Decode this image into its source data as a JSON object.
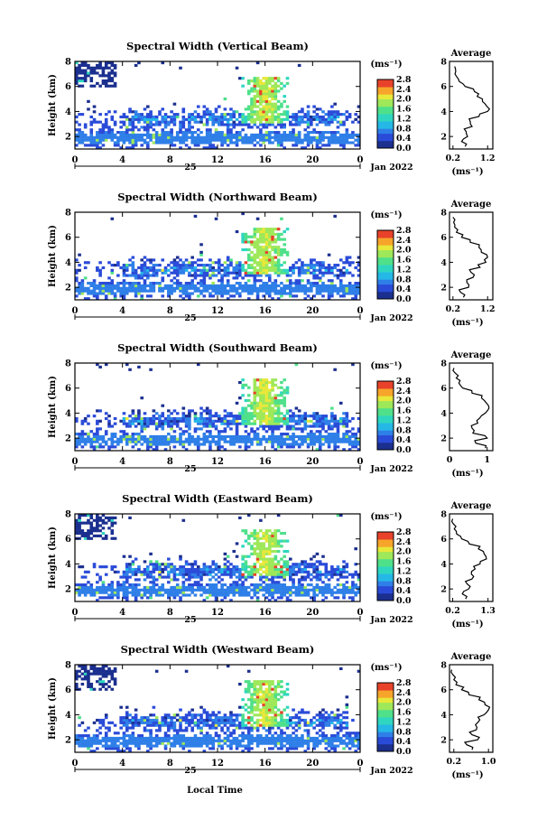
{
  "figure": {
    "date_label": "Jan 2022",
    "day_label": "25",
    "xlabel": "Local Time",
    "colorbar_unit": "(ms⁻¹)",
    "colorbar_ticks": [
      "0.0",
      "0.4",
      "0.8",
      "1.2",
      "1.6",
      "2.0",
      "2.4",
      "2.8"
    ],
    "colormap": [
      "#1b2f8f",
      "#2a4bd8",
      "#2f7fe8",
      "#25b8e6",
      "#2fd6c0",
      "#4fe08a",
      "#9ee85a",
      "#e8e83a",
      "#f6a52a",
      "#e8422a"
    ]
  },
  "chart_data": [
    {
      "type": "heatmap",
      "title": "Spectral Width (Vertical Beam)",
      "ylabel": "Height (km)",
      "x_ticks": [
        "0",
        "4",
        "8",
        "12",
        "16",
        "20",
        "0"
      ],
      "y_ticks": [
        "2",
        "4",
        "6",
        "8"
      ],
      "xlim": [
        0,
        24
      ],
      "ylim": [
        1,
        8
      ],
      "color_range": [
        0.0,
        2.8
      ],
      "profile": {
        "title": "Average",
        "xlabel": "(ms⁻¹)",
        "x_ticks": [
          "0.2",
          "1.2"
        ],
        "x_tick_values": [
          0.2,
          1.2
        ],
        "xlim": [
          0.1,
          1.35
        ],
        "y_ticks": [
          "2",
          "4",
          "6",
          "8"
        ],
        "heights": [
          1.2,
          1.6,
          2.0,
          2.4,
          2.8,
          3.2,
          3.6,
          4.0,
          4.4,
          4.8,
          5.2,
          5.6,
          6.0,
          6.4,
          6.8,
          7.2,
          7.6
        ],
        "values": [
          0.55,
          0.45,
          0.62,
          0.58,
          0.75,
          0.7,
          0.95,
          1.2,
          1.18,
          1.05,
          0.9,
          0.82,
          0.55,
          0.38,
          0.3,
          0.28,
          0.25
        ]
      }
    },
    {
      "type": "heatmap",
      "title": "Spectral Width (Northward Beam)",
      "ylabel": "Height (km)",
      "x_ticks": [
        "0",
        "4",
        "8",
        "12",
        "16",
        "20",
        "0"
      ],
      "y_ticks": [
        "2",
        "4",
        "6",
        "8"
      ],
      "xlim": [
        0,
        24
      ],
      "ylim": [
        1,
        8
      ],
      "color_range": [
        0.0,
        2.8
      ],
      "profile": {
        "title": "Average",
        "xlabel": "(ms⁻¹)",
        "x_ticks": [
          "0.2",
          "1.2"
        ],
        "x_tick_values": [
          0.2,
          1.2
        ],
        "xlim": [
          0.1,
          1.35
        ],
        "y_ticks": [
          "2",
          "4",
          "6",
          "8"
        ],
        "heights": [
          1.2,
          1.6,
          2.0,
          2.4,
          2.8,
          3.2,
          3.6,
          4.0,
          4.4,
          4.8,
          5.2,
          5.6,
          6.0,
          6.4,
          6.8,
          7.2,
          7.6
        ],
        "values": [
          0.5,
          0.42,
          0.65,
          0.6,
          0.78,
          0.72,
          0.98,
          1.15,
          1.2,
          1.02,
          0.95,
          0.7,
          0.45,
          0.3,
          0.25,
          0.22,
          0.2
        ]
      }
    },
    {
      "type": "heatmap",
      "title": "Spectral Width (Southward Beam)",
      "ylabel": "Height (km)",
      "x_ticks": [
        "0",
        "4",
        "8",
        "12",
        "16",
        "20",
        "0"
      ],
      "y_ticks": [
        "2",
        "4",
        "6",
        "8"
      ],
      "xlim": [
        0,
        24
      ],
      "ylim": [
        1,
        8
      ],
      "color_range": [
        0.0,
        2.8
      ],
      "profile": {
        "title": "Average",
        "xlabel": "(ms⁻¹)",
        "x_ticks": [
          "0",
          "1"
        ],
        "x_tick_values": [
          0,
          1
        ],
        "xlim": [
          0,
          1.15
        ],
        "y_ticks": [
          "2",
          "4",
          "6",
          "8"
        ],
        "heights": [
          1.2,
          1.6,
          2.0,
          2.4,
          2.8,
          3.2,
          3.6,
          4.0,
          4.4,
          4.8,
          5.2,
          5.6,
          6.0,
          6.4,
          6.8,
          7.2,
          7.6
        ],
        "values": [
          0.95,
          0.7,
          1.0,
          0.62,
          0.6,
          0.75,
          0.8,
          0.95,
          1.05,
          0.98,
          0.85,
          0.6,
          0.35,
          0.25,
          0.18,
          0.15,
          0.12
        ]
      }
    },
    {
      "type": "heatmap",
      "title": "Spectral Width (Eastward Beam)",
      "ylabel": "Height (km)",
      "x_ticks": [
        "0",
        "4",
        "8",
        "12",
        "16",
        "20",
        "0"
      ],
      "y_ticks": [
        "2",
        "4",
        "6",
        "8"
      ],
      "xlim": [
        0,
        24
      ],
      "ylim": [
        1,
        8
      ],
      "color_range": [
        0.0,
        2.8
      ],
      "profile": {
        "title": "Average",
        "xlabel": "(ms⁻¹)",
        "x_ticks": [
          "0.2",
          "1.3"
        ],
        "x_tick_values": [
          0.2,
          1.3
        ],
        "xlim": [
          0.1,
          1.45
        ],
        "y_ticks": [
          "2",
          "4",
          "6",
          "8"
        ],
        "heights": [
          1.2,
          1.6,
          2.0,
          2.4,
          2.8,
          3.2,
          3.6,
          4.0,
          4.4,
          4.8,
          5.2,
          5.6,
          6.0,
          6.4,
          6.8,
          7.2,
          7.6
        ],
        "values": [
          0.6,
          0.5,
          0.7,
          0.65,
          0.8,
          0.78,
          0.9,
          1.05,
          1.25,
          1.18,
          1.0,
          0.72,
          0.48,
          0.32,
          0.25,
          0.22,
          0.2
        ]
      }
    },
    {
      "type": "heatmap",
      "title": "Spectral Width (Westward Beam)",
      "ylabel": "Height (km)",
      "x_ticks": [
        "0",
        "4",
        "8",
        "12",
        "16",
        "20",
        "0"
      ],
      "y_ticks": [
        "2",
        "4",
        "6",
        "8"
      ],
      "xlim": [
        0,
        24
      ],
      "ylim": [
        1,
        8
      ],
      "color_range": [
        0.0,
        2.8
      ],
      "profile": {
        "title": "Average",
        "xlabel": "(ms⁻¹)",
        "x_ticks": [
          "0.2",
          "1.0"
        ],
        "x_tick_values": [
          0.2,
          1.0
        ],
        "xlim": [
          0.1,
          1.1
        ],
        "y_ticks": [
          "2",
          "4",
          "6",
          "8"
        ],
        "heights": [
          1.2,
          1.6,
          2.0,
          2.4,
          2.8,
          3.2,
          3.6,
          4.0,
          4.4,
          4.8,
          5.2,
          5.6,
          6.0,
          6.4,
          6.8,
          7.2,
          7.6
        ],
        "values": [
          0.62,
          0.5,
          0.75,
          0.62,
          0.72,
          0.7,
          0.8,
          0.9,
          1.0,
          0.92,
          0.78,
          0.55,
          0.38,
          0.25,
          0.2,
          0.18,
          0.15
        ]
      }
    }
  ]
}
